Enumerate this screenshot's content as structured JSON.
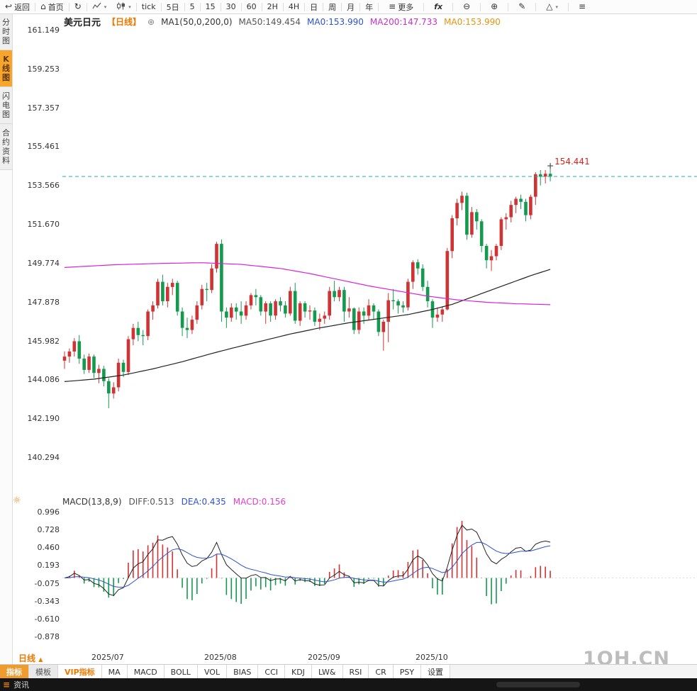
{
  "toolbar": {
    "items": [
      {
        "type": "btn",
        "name": "back-button",
        "glyph": "↩",
        "label": "返回"
      },
      {
        "type": "sep"
      },
      {
        "type": "btn",
        "name": "home-button",
        "glyph": "⌂",
        "label": "首页"
      },
      {
        "type": "sep"
      },
      {
        "type": "btn",
        "name": "refresh-button",
        "glyph": "↻"
      },
      {
        "type": "sep"
      },
      {
        "type": "btn",
        "name": "chart-style-line-button",
        "svg": "area",
        "caret": true
      },
      {
        "type": "btn",
        "name": "chart-style-candle-button",
        "svg": "candle",
        "caret": true
      },
      {
        "type": "sep"
      },
      {
        "type": "btn",
        "name": "period-tick-button",
        "label": "tick"
      },
      {
        "type": "sep"
      },
      {
        "type": "btn",
        "name": "period-5day-button",
        "label": "5日"
      },
      {
        "type": "sep"
      },
      {
        "type": "btn",
        "name": "period-5min-button",
        "label": "5"
      },
      {
        "type": "sep"
      },
      {
        "type": "btn",
        "name": "period-15min-button",
        "label": "15"
      },
      {
        "type": "sep"
      },
      {
        "type": "btn",
        "name": "period-30min-button",
        "label": "30"
      },
      {
        "type": "sep"
      },
      {
        "type": "btn",
        "name": "period-60min-button",
        "label": "60"
      },
      {
        "type": "sep"
      },
      {
        "type": "btn",
        "name": "period-2h-button",
        "label": "2H"
      },
      {
        "type": "sep"
      },
      {
        "type": "btn",
        "name": "period-4h-button",
        "label": "4H"
      },
      {
        "type": "sep"
      },
      {
        "type": "btn",
        "name": "period-day-button",
        "label": "日"
      },
      {
        "type": "sep"
      },
      {
        "type": "btn",
        "name": "period-week-button",
        "label": "周"
      },
      {
        "type": "sep"
      },
      {
        "type": "btn",
        "name": "period-month-button",
        "label": "月"
      },
      {
        "type": "sep"
      },
      {
        "type": "btn",
        "name": "period-year-button",
        "label": "年"
      },
      {
        "type": "sep"
      },
      {
        "type": "btn",
        "name": "more-button",
        "glyph": "≡",
        "label": "更多",
        "wide": true
      },
      {
        "type": "sep"
      },
      {
        "type": "btn",
        "name": "fx-button",
        "label": "fx",
        "italic": true,
        "wide": true
      },
      {
        "type": "sep"
      },
      {
        "type": "btn",
        "name": "zoom-out-button",
        "glyph": "⊖",
        "wide": true
      },
      {
        "type": "sep"
      },
      {
        "type": "btn",
        "name": "zoom-in-button",
        "glyph": "⊕",
        "wide": true
      },
      {
        "type": "sep"
      },
      {
        "type": "btn",
        "name": "draw-tool-button",
        "glyph": "✎",
        "wide": true
      },
      {
        "type": "sep"
      },
      {
        "type": "btn",
        "name": "shapes-tool-button",
        "glyph": "△",
        "caret": true,
        "wide": true
      },
      {
        "type": "sep"
      },
      {
        "type": "btn",
        "name": "menu-button",
        "glyph": "≡",
        "wide": true
      }
    ]
  },
  "sidebar": {
    "tabs": [
      {
        "name": "time-chart",
        "label": "分时图",
        "active": false
      },
      {
        "name": "kline-chart",
        "label": "K线图",
        "active": true
      },
      {
        "name": "lightning-chart",
        "label": "闪电图",
        "active": false
      },
      {
        "name": "contract-info",
        "label": "合约资料",
        "active": false
      }
    ]
  },
  "header": {
    "symbol": "美元日元",
    "period": "【日线】",
    "expand_glyph": "⊕",
    "ma_label": "MA1(50,0,200,0)",
    "legend": [
      {
        "text": "MA50:149.454",
        "color": "#555555"
      },
      {
        "text": "MA0:153.990",
        "color": "#2d53cc"
      },
      {
        "text": "MA200:147.733",
        "color": "#cb2fcb"
      },
      {
        "text": "MA0:153.990",
        "color": "#e5940e"
      }
    ]
  },
  "main_axis": {
    "ticks": [
      "161.149",
      "159.253",
      "157.357",
      "155.461",
      "153.566",
      "151.670",
      "149.774",
      "147.878",
      "145.982",
      "144.086",
      "142.190",
      "140.294"
    ]
  },
  "price_marker": {
    "high_label": "154.441",
    "current_price": 153.99
  },
  "macd": {
    "settings_icon_glyph": "☼",
    "header": [
      {
        "text": "MACD(13,8,9)",
        "color": "#333333"
      },
      {
        "text": "DIFF:0.513",
        "color": "#555555"
      },
      {
        "text": "DEA:0.435",
        "color": "#2d53cc"
      },
      {
        "text": "MACD:0.156",
        "color": "#e03fd0"
      }
    ],
    "ticks": [
      "0.996",
      "0.728",
      "0.460",
      "0.193",
      "-0.075",
      "-0.343",
      "-0.610",
      "-0.878"
    ]
  },
  "bottom": {
    "period_selector": "日线",
    "period_caret": "▲",
    "tabs": [
      {
        "name": "indicator",
        "label": "指标",
        "style": "primary"
      },
      {
        "name": "template",
        "label": "模板",
        "style": "muted"
      },
      {
        "name": "vip-indicator",
        "label": "VIP指标",
        "style": "vip"
      },
      {
        "name": "ma",
        "label": "MA"
      },
      {
        "name": "macd",
        "label": "MACD"
      },
      {
        "name": "boll",
        "label": "BOLL"
      },
      {
        "name": "vol",
        "label": "VOL"
      },
      {
        "name": "bias",
        "label": "BIAS"
      },
      {
        "name": "cci",
        "label": "CCI"
      },
      {
        "name": "kdj",
        "label": "KDJ"
      },
      {
        "name": "lw",
        "label": "LW&"
      },
      {
        "name": "rsi",
        "label": "RSI"
      },
      {
        "name": "cr",
        "label": "CR"
      },
      {
        "name": "psy",
        "label": "PSY"
      },
      {
        "name": "settings",
        "label": "设置"
      }
    ]
  },
  "statusbar": {
    "icon_glyph": "≡",
    "label": "资讯"
  },
  "watermark": "1QH.CN",
  "colors": {
    "up": "#cf3333",
    "down": "#149a4e",
    "ma50": "#222222",
    "ma200": "#d824d8",
    "price_line": "#2aa8a8",
    "diff": "#222222",
    "dea": "#2d53cc",
    "high_label": "#e01f1f",
    "accent": "#f08200"
  },
  "chart_data": {
    "type": "candlestick",
    "title": "美元日元 日线 (USD/JPY daily) with MA50/MA200 and MACD(13,8,9)",
    "y_range": [
      140.294,
      161.149
    ],
    "macd_range": [
      -0.878,
      0.996
    ],
    "current_price": 153.99,
    "session_high": 154.441,
    "month_ticks": [
      {
        "index": 9,
        "label": "2025/07"
      },
      {
        "index": 32,
        "label": "2025/08"
      },
      {
        "index": 53,
        "label": "2025/09"
      },
      {
        "index": 75,
        "label": "2025/10"
      }
    ],
    "macd_params": {
      "fast": 8,
      "slow": 13,
      "signal": 9,
      "diff": 0.513,
      "dea": 0.435,
      "macd": 0.156
    },
    "ma50_points": [
      [
        0,
        143.98
      ],
      [
        6,
        144.1
      ],
      [
        12,
        144.3
      ],
      [
        18,
        144.6
      ],
      [
        24,
        144.95
      ],
      [
        30,
        145.35
      ],
      [
        34,
        145.6
      ],
      [
        40,
        145.95
      ],
      [
        46,
        146.3
      ],
      [
        52,
        146.6
      ],
      [
        58,
        146.85
      ],
      [
        64,
        147.05
      ],
      [
        70,
        147.25
      ],
      [
        75,
        147.5
      ],
      [
        79,
        147.75
      ],
      [
        83,
        148.1
      ],
      [
        87,
        148.45
      ],
      [
        91,
        148.8
      ],
      [
        95,
        149.15
      ],
      [
        99,
        149.454
      ]
    ],
    "ma200_points": [
      [
        0,
        149.55
      ],
      [
        10,
        149.68
      ],
      [
        20,
        149.75
      ],
      [
        28,
        149.78
      ],
      [
        36,
        149.7
      ],
      [
        44,
        149.5
      ],
      [
        50,
        149.25
      ],
      [
        56,
        148.95
      ],
      [
        62,
        148.65
      ],
      [
        68,
        148.4
      ],
      [
        74,
        148.15
      ],
      [
        80,
        147.97
      ],
      [
        86,
        147.85
      ],
      [
        92,
        147.78
      ],
      [
        99,
        147.733
      ]
    ],
    "ohlc": [
      [
        145.0,
        145.45,
        144.6,
        145.2
      ],
      [
        145.2,
        145.6,
        144.9,
        145.45
      ],
      [
        145.45,
        146.1,
        145.2,
        145.95
      ],
      [
        145.95,
        146.25,
        144.85,
        145.1
      ],
      [
        145.1,
        145.3,
        144.35,
        144.55
      ],
      [
        144.55,
        145.35,
        144.4,
        145.2
      ],
      [
        145.2,
        145.3,
        144.15,
        144.4
      ],
      [
        144.4,
        144.8,
        143.9,
        144.6
      ],
      [
        144.6,
        144.75,
        143.75,
        144.0
      ],
      [
        144.0,
        144.15,
        142.68,
        143.4
      ],
      [
        143.4,
        143.95,
        143.15,
        143.7
      ],
      [
        143.7,
        145.1,
        143.5,
        144.9
      ],
      [
        144.9,
        145.05,
        144.2,
        144.45
      ],
      [
        144.45,
        146.2,
        144.3,
        146.05
      ],
      [
        146.05,
        146.8,
        145.75,
        146.6
      ],
      [
        146.6,
        146.9,
        145.95,
        146.25
      ],
      [
        146.25,
        146.5,
        145.75,
        146.2
      ],
      [
        146.2,
        147.5,
        146.0,
        147.4
      ],
      [
        147.4,
        147.9,
        147.0,
        147.7
      ],
      [
        147.7,
        149.0,
        147.55,
        148.85
      ],
      [
        148.85,
        149.2,
        147.7,
        147.9
      ],
      [
        147.9,
        148.8,
        147.6,
        148.6
      ],
      [
        148.6,
        149.0,
        148.2,
        148.8
      ],
      [
        148.8,
        148.9,
        147.2,
        147.4
      ],
      [
        147.4,
        147.6,
        146.2,
        146.6
      ],
      [
        146.6,
        147.1,
        146.1,
        146.5
      ],
      [
        146.5,
        147.2,
        146.3,
        147.0
      ],
      [
        147.0,
        147.9,
        146.8,
        147.7
      ],
      [
        147.7,
        148.7,
        147.5,
        148.5
      ],
      [
        148.5,
        148.8,
        147.9,
        148.45
      ],
      [
        148.45,
        149.7,
        148.3,
        149.5
      ],
      [
        149.5,
        150.8,
        149.3,
        150.7
      ],
      [
        150.7,
        150.92,
        146.9,
        147.4
      ],
      [
        147.4,
        147.6,
        146.6,
        147.1
      ],
      [
        147.1,
        147.8,
        146.9,
        147.6
      ],
      [
        147.6,
        147.8,
        147.0,
        147.4
      ],
      [
        147.4,
        147.9,
        146.8,
        147.2
      ],
      [
        147.2,
        147.9,
        147.0,
        147.7
      ],
      [
        147.7,
        148.3,
        147.5,
        148.2
      ],
      [
        148.2,
        148.5,
        147.7,
        148.1
      ],
      [
        148.1,
        148.2,
        147.2,
        147.4
      ],
      [
        147.4,
        147.9,
        146.8,
        147.8
      ],
      [
        147.8,
        147.9,
        146.9,
        147.2
      ],
      [
        147.2,
        148.0,
        147.0,
        147.9
      ],
      [
        147.9,
        148.1,
        147.4,
        147.7
      ],
      [
        147.7,
        147.9,
        147.1,
        147.3
      ],
      [
        147.3,
        148.6,
        147.2,
        148.4
      ],
      [
        148.4,
        148.8,
        146.8,
        146.95
      ],
      [
        146.95,
        147.9,
        146.7,
        147.8
      ],
      [
        147.8,
        147.9,
        147.1,
        147.4
      ],
      [
        147.4,
        147.7,
        147.0,
        147.45
      ],
      [
        147.45,
        147.6,
        146.7,
        146.9
      ],
      [
        146.9,
        147.3,
        146.5,
        147.05
      ],
      [
        147.05,
        147.4,
        146.8,
        147.2
      ],
      [
        147.2,
        148.6,
        147.0,
        148.4
      ],
      [
        148.4,
        148.9,
        147.9,
        148.1
      ],
      [
        148.1,
        148.6,
        147.9,
        148.45
      ],
      [
        148.45,
        148.6,
        146.9,
        147.4
      ],
      [
        147.4,
        148.1,
        147.1,
        147.55
      ],
      [
        147.55,
        147.6,
        146.3,
        146.5
      ],
      [
        146.5,
        147.6,
        146.3,
        147.4
      ],
      [
        147.4,
        147.6,
        146.8,
        147.2
      ],
      [
        147.2,
        148.0,
        147.0,
        147.7
      ],
      [
        147.7,
        147.8,
        147.0,
        147.4
      ],
      [
        147.4,
        147.5,
        146.2,
        146.4
      ],
      [
        146.4,
        147.0,
        145.49,
        146.9
      ],
      [
        146.9,
        148.3,
        145.9,
        147.95
      ],
      [
        147.95,
        148.5,
        147.5,
        147.9
      ],
      [
        147.9,
        148.0,
        147.3,
        147.7
      ],
      [
        147.7,
        147.9,
        147.35,
        147.6
      ],
      [
        147.6,
        149.0,
        147.45,
        148.85
      ],
      [
        148.85,
        149.9,
        148.5,
        149.8
      ],
      [
        149.8,
        149.95,
        149.2,
        149.5
      ],
      [
        149.5,
        149.7,
        148.4,
        148.6
      ],
      [
        148.6,
        148.9,
        147.6,
        147.9
      ],
      [
        147.9,
        148.0,
        146.6,
        147.1
      ],
      [
        147.1,
        147.6,
        146.9,
        147.25
      ],
      [
        147.25,
        147.65,
        146.9,
        147.5
      ],
      [
        147.5,
        150.5,
        147.45,
        150.35
      ],
      [
        150.35,
        152.1,
        150.0,
        151.95
      ],
      [
        151.95,
        152.9,
        151.6,
        152.7
      ],
      [
        152.7,
        153.25,
        152.35,
        153.05
      ],
      [
        153.05,
        153.2,
        150.9,
        151.15
      ],
      [
        151.15,
        152.5,
        151.0,
        152.25
      ],
      [
        152.25,
        152.4,
        151.4,
        151.8
      ],
      [
        151.8,
        151.9,
        150.3,
        150.6
      ],
      [
        150.6,
        150.7,
        149.5,
        149.9
      ],
      [
        149.9,
        150.4,
        149.38,
        150.1
      ],
      [
        150.1,
        150.7,
        149.9,
        150.6
      ],
      [
        150.6,
        152.0,
        150.4,
        151.9
      ],
      [
        151.9,
        152.2,
        151.4,
        152.0
      ],
      [
        152.0,
        152.8,
        151.75,
        152.6
      ],
      [
        152.6,
        153.0,
        152.2,
        152.9
      ],
      [
        152.9,
        153.1,
        152.4,
        152.75
      ],
      [
        152.75,
        152.9,
        151.8,
        152.1
      ],
      [
        152.1,
        153.1,
        151.9,
        153.0
      ],
      [
        153.0,
        154.2,
        152.6,
        154.1
      ],
      [
        154.1,
        154.3,
        153.55,
        153.98
      ],
      [
        153.98,
        154.3,
        153.65,
        154.12
      ],
      [
        154.12,
        154.441,
        153.75,
        153.99
      ]
    ]
  }
}
